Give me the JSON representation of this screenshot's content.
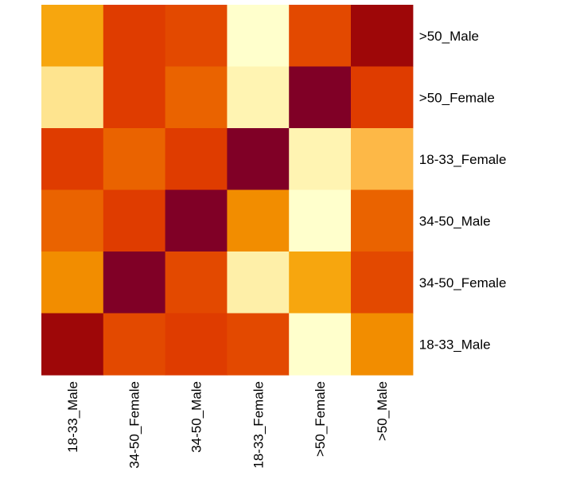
{
  "chart_data": {
    "type": "heatmap",
    "title": "",
    "xlabel": "",
    "ylabel": "",
    "columns": [
      "18-33_Male",
      "34-50_Female",
      "34-50_Male",
      "18-33_Female",
      ">50_Female",
      ">50_Male"
    ],
    "rows": [
      ">50_Male",
      ">50_Female",
      "18-33_Female",
      "34-50_Male",
      "34-50_Female",
      "18-33_Male"
    ],
    "values": [
      [
        0.35,
        0.75,
        0.7,
        0.0,
        0.7,
        0.9
      ],
      [
        0.12,
        0.75,
        0.6,
        0.05,
        1.0,
        0.75
      ],
      [
        0.75,
        0.6,
        0.75,
        1.0,
        0.05,
        0.25
      ],
      [
        0.6,
        0.75,
        1.0,
        0.45,
        0.0,
        0.6
      ],
      [
        0.45,
        1.0,
        0.7,
        0.07,
        0.35,
        0.7
      ],
      [
        0.9,
        0.7,
        0.75,
        0.7,
        0.0,
        0.45
      ]
    ],
    "colorscale": [
      "#ffffcc",
      "#fee38c",
      "#fdb847",
      "#f5a100",
      "#f08000",
      "#e85c00",
      "#df3c00",
      "#a50900",
      "#800026"
    ],
    "range": [
      0,
      1
    ],
    "legend": "none",
    "grid": false
  }
}
